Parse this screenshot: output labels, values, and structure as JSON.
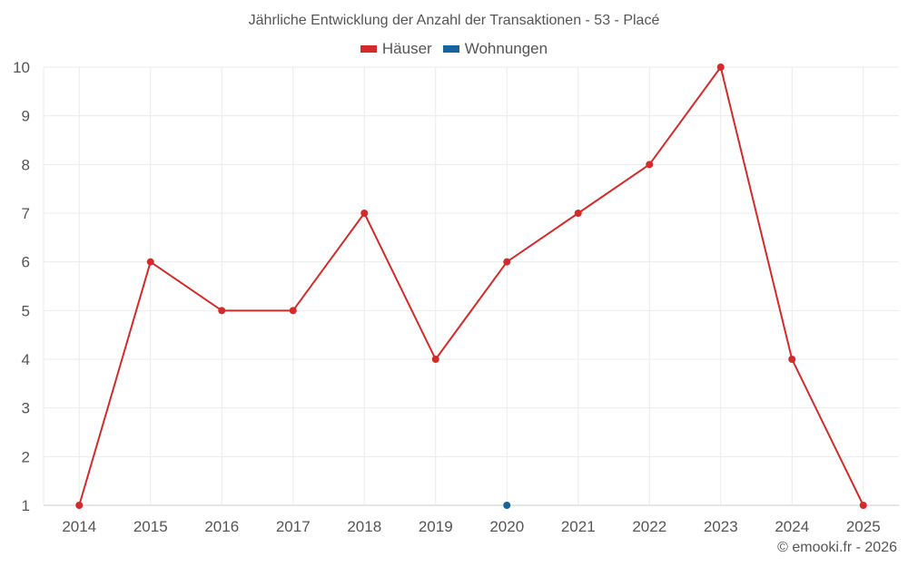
{
  "chart_data": {
    "type": "line",
    "title": "Jährliche Entwicklung der Anzahl der Transaktionen - 53 - Placé",
    "x": [
      "2014",
      "2015",
      "2016",
      "2017",
      "2018",
      "2019",
      "2020",
      "2021",
      "2022",
      "2023",
      "2024",
      "2025"
    ],
    "ylim": [
      1,
      10
    ],
    "yticks": [
      1,
      2,
      3,
      4,
      5,
      6,
      7,
      8,
      9,
      10
    ],
    "grid": true,
    "legend_position": "top-center",
    "series": [
      {
        "name": "Häuser",
        "color": "#d42a2a",
        "values": [
          1,
          6,
          5,
          5,
          7,
          4,
          6,
          7,
          8,
          10,
          4,
          1
        ]
      },
      {
        "name": "Wohnungen",
        "color": "#1464a0",
        "values": [
          null,
          null,
          null,
          null,
          null,
          null,
          1,
          null,
          null,
          null,
          null,
          null
        ]
      }
    ]
  },
  "footer": {
    "credit": "© emooki.fr - 2026"
  }
}
